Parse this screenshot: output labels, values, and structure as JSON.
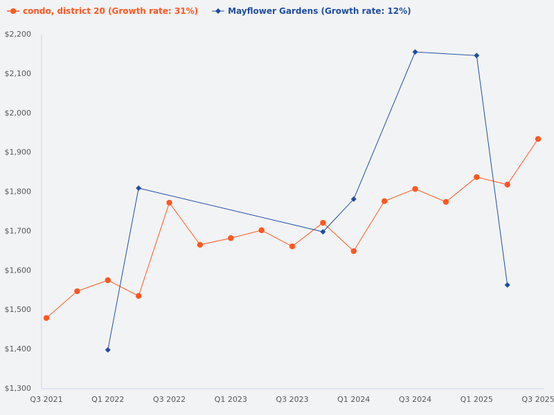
{
  "chart_data": {
    "type": "line",
    "title": "",
    "xlabel": "",
    "ylabel": "",
    "categories": [
      "Q3 2021",
      "Q4 2021",
      "Q1 2022",
      "Q2 2022",
      "Q3 2022",
      "Q4 2022",
      "Q1 2023",
      "Q2 2023",
      "Q3 2023",
      "Q4 2023",
      "Q1 2024",
      "Q2 2024",
      "Q3 2024",
      "Q4 2024",
      "Q1 2025",
      "Q2 2025",
      "Q3 2025"
    ],
    "x_tick_labels": [
      "Q3 2021",
      "Q1 2022",
      "Q3 2022",
      "Q1 2023",
      "Q3 2023",
      "Q1 2024",
      "Q3 2024",
      "Q1 2025",
      "Q3 2025"
    ],
    "ylim": [
      1300,
      2200
    ],
    "y_ticks": [
      1300,
      1400,
      1500,
      1600,
      1700,
      1800,
      1900,
      2000,
      2100,
      2200
    ],
    "y_tick_labels": [
      "$1,300",
      "$1,400",
      "$1,500",
      "$1,600",
      "$1,700",
      "$1,800",
      "$1,900",
      "$2,000",
      "$2,100",
      "$2,200"
    ],
    "grid": false,
    "legend_position": "top-left",
    "series": [
      {
        "name": "condo, district 20 (Growth rate: 31%)",
        "color": "#ff5722",
        "marker": "circle",
        "values": [
          1478,
          1546,
          1574,
          1534,
          1771,
          1664,
          1681,
          1701,
          1660,
          1720,
          1648,
          1775,
          1806,
          1773,
          1836,
          1817,
          1933
        ]
      },
      {
        "name": "Mayflower Gardens (Growth rate: 12%)",
        "color": "#1f4ea1",
        "marker": "diamond",
        "values": [
          null,
          null,
          1397,
          1808,
          null,
          null,
          null,
          null,
          null,
          1697,
          1780,
          null,
          2154,
          null,
          2145,
          1562,
          null
        ]
      }
    ]
  }
}
